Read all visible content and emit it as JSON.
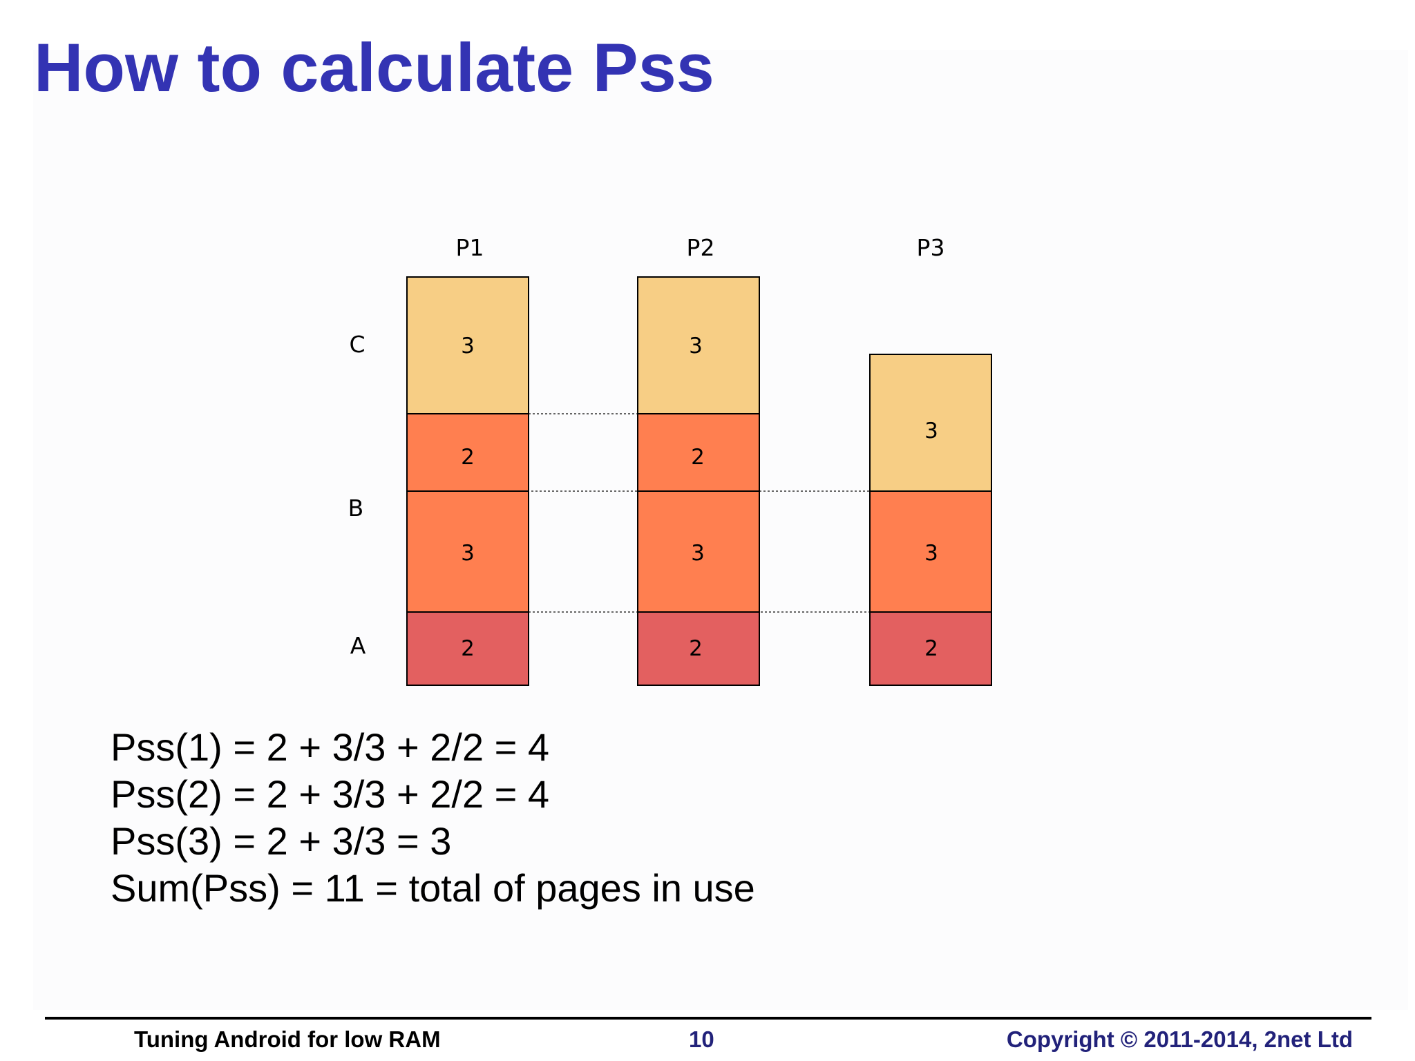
{
  "title": "How to calculate Pss",
  "diagram": {
    "process_labels": [
      "P1",
      "P2",
      "P3"
    ],
    "library_labels": [
      "C",
      "B",
      "A"
    ],
    "processes": [
      {
        "segments": [
          {
            "lib": "A",
            "pages": 2
          },
          {
            "lib": "B",
            "pages": 3
          },
          {
            "lib": "B",
            "pages": 2
          },
          {
            "lib": "C",
            "pages": 3
          }
        ]
      },
      {
        "segments": [
          {
            "lib": "A",
            "pages": 2
          },
          {
            "lib": "B",
            "pages": 3
          },
          {
            "lib": "B",
            "pages": 2
          },
          {
            "lib": "C",
            "pages": 3
          }
        ]
      },
      {
        "segments": [
          {
            "lib": "A",
            "pages": 2
          },
          {
            "lib": "B",
            "pages": 3
          },
          {
            "lib": "C",
            "pages": 3
          }
        ]
      }
    ],
    "colors": {
      "A": "#e36060",
      "B": "#ff7f50",
      "C": "#f7ce85"
    }
  },
  "formulas": [
    "Pss(1) = 2 + 3/3 + 2/2 = 4",
    "Pss(2) = 2 + 3/3 + 2/2 = 4",
    "Pss(3) = 2 + 3/3 = 3",
    "Sum(Pss) = 11 = total of pages in use"
  ],
  "footer": {
    "left": "Tuning Android for low RAM",
    "page_number": "10",
    "copyright": "Copyright © 2011-2014, 2net Ltd"
  }
}
